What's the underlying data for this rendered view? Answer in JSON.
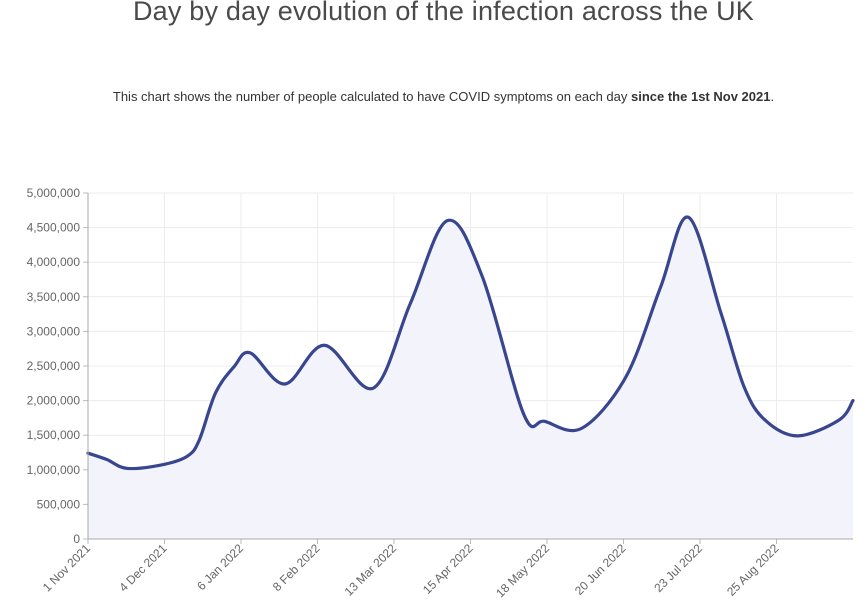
{
  "header": {
    "title": "Day by day evolution of the infection across the UK",
    "subtitle_pre": "This chart shows the number of people calculated to have COVID symptoms on each day ",
    "subtitle_bold": "since the 1st Nov 2021",
    "subtitle_post": "."
  },
  "chart_data": {
    "type": "area",
    "title": "",
    "xlabel": "",
    "ylabel": "",
    "ylim": [
      0,
      5000000
    ],
    "xlim": [
      "2021-11-01",
      "2022-09-27"
    ],
    "grid": true,
    "line_color": "#38458f",
    "fill_color": "#f3f4fb",
    "y_ticks": [
      0,
      500000,
      1000000,
      1500000,
      2000000,
      2500000,
      3000000,
      3500000,
      4000000,
      4500000,
      5000000
    ],
    "y_tick_labels": [
      "0",
      "500,000",
      "1,000,000",
      "1,500,000",
      "2,000,000",
      "2,500,000",
      "3,000,000",
      "3,500,000",
      "4,000,000",
      "4,500,000",
      "5,000,000"
    ],
    "x_ticks": [
      "2021-11-01",
      "2021-12-04",
      "2022-01-06",
      "2022-02-08",
      "2022-03-13",
      "2022-04-15",
      "2022-05-18",
      "2022-06-20",
      "2022-07-23",
      "2022-08-25"
    ],
    "x_tick_labels": [
      "1 Nov 2021",
      "4 Dec 2021",
      "6 Jan 2022",
      "8 Feb 2022",
      "13 Mar 2022",
      "15 Apr 2022",
      "18 May 2022",
      "20 Jun 2022",
      "23 Jul 2022",
      "25 Aug 2022"
    ],
    "points": [
      [
        "2021-11-01",
        1240000
      ],
      [
        "2021-11-09",
        1150000
      ],
      [
        "2021-11-18",
        1020000
      ],
      [
        "2021-12-04",
        1080000
      ],
      [
        "2021-12-14",
        1200000
      ],
      [
        "2021-12-19",
        1430000
      ],
      [
        "2021-12-26",
        2110000
      ],
      [
        "2022-01-03",
        2490000
      ],
      [
        "2022-01-10",
        2690000
      ],
      [
        "2022-01-25",
        2240000
      ],
      [
        "2022-02-11",
        2800000
      ],
      [
        "2022-03-04",
        2180000
      ],
      [
        "2022-03-20",
        3400000
      ],
      [
        "2022-04-05",
        4600000
      ],
      [
        "2022-04-20",
        3800000
      ],
      [
        "2022-05-08",
        1800000
      ],
      [
        "2022-05-17",
        1700000
      ],
      [
        "2022-06-02",
        1600000
      ],
      [
        "2022-06-21",
        2340000
      ],
      [
        "2022-07-06",
        3640000
      ],
      [
        "2022-07-18",
        4650000
      ],
      [
        "2022-08-01",
        3270000
      ],
      [
        "2022-08-11",
        2200000
      ],
      [
        "2022-08-20",
        1720000
      ],
      [
        "2022-09-03",
        1490000
      ],
      [
        "2022-09-21",
        1720000
      ],
      [
        "2022-09-27",
        2000000
      ]
    ]
  }
}
